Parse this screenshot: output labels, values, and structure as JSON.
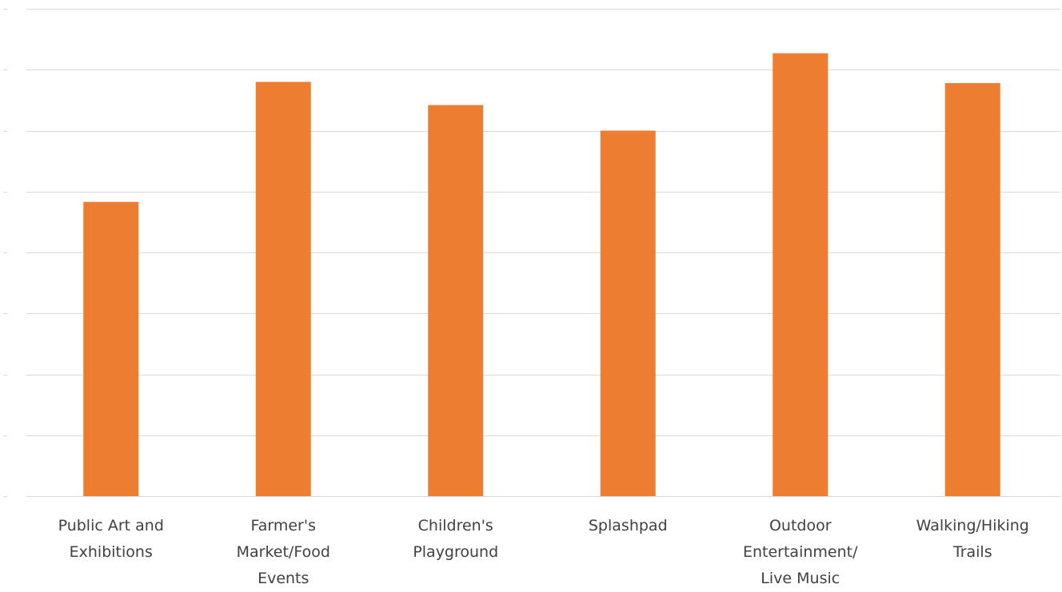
{
  "chart_data": {
    "type": "bar",
    "categories": [
      [
        "Public Art and",
        "Exhibitions"
      ],
      [
        "Farmer's",
        "Market/Food",
        "Events"
      ],
      [
        "Children's",
        "Playground"
      ],
      [
        "Splashpad"
      ],
      [
        "Outdoor",
        "Entertainment/",
        "Live Music"
      ],
      [
        "Walking/Hiking",
        "Trails"
      ]
    ],
    "values": [
      4.83,
      6.8,
      6.42,
      6.0,
      7.27,
      6.78
    ],
    "ylim": [
      0,
      8
    ],
    "grid": true,
    "legend": "none",
    "bar_color": "#ED7D31",
    "grid_color": "#d9d9d9",
    "label_color": "#404040"
  }
}
